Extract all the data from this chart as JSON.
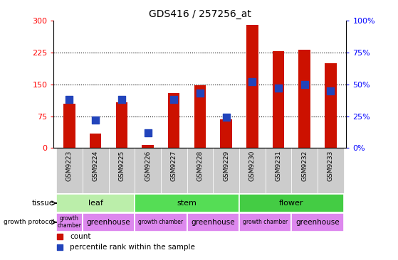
{
  "title": "GDS416 / 257256_at",
  "samples": [
    "GSM9223",
    "GSM9224",
    "GSM9225",
    "GSM9226",
    "GSM9227",
    "GSM9228",
    "GSM9229",
    "GSM9230",
    "GSM9231",
    "GSM9232",
    "GSM9233"
  ],
  "counts": [
    105,
    35,
    108,
    8,
    130,
    148,
    68,
    290,
    228,
    232,
    200
  ],
  "percentiles": [
    38,
    22,
    38,
    12,
    38,
    43,
    24,
    52,
    47,
    50,
    45
  ],
  "ylim_left": [
    0,
    300
  ],
  "ylim_right": [
    0,
    100
  ],
  "yticks_left": [
    0,
    75,
    150,
    225,
    300
  ],
  "yticks_right": [
    0,
    25,
    50,
    75,
    100
  ],
  "bar_color": "#cc1100",
  "dot_color": "#2244bb",
  "tissue_groups": [
    {
      "label": "leaf",
      "start": 0,
      "end": 3,
      "color": "#bbeeaa"
    },
    {
      "label": "stem",
      "start": 3,
      "end": 7,
      "color": "#55dd55"
    },
    {
      "label": "flower",
      "start": 7,
      "end": 11,
      "color": "#44cc44"
    }
  ],
  "protocol_groups": [
    {
      "label": "growth\nchamber",
      "start": 0,
      "end": 1,
      "small": true
    },
    {
      "label": "greenhouse",
      "start": 1,
      "end": 3,
      "small": false
    },
    {
      "label": "growth chamber",
      "start": 3,
      "end": 5,
      "small": true
    },
    {
      "label": "greenhouse",
      "start": 5,
      "end": 7,
      "small": false
    },
    {
      "label": "growth chamber",
      "start": 7,
      "end": 9,
      "small": true
    },
    {
      "label": "greenhouse",
      "start": 9,
      "end": 11,
      "small": false
    }
  ],
  "protocol_color": "#dd88ee",
  "tissue_label": "tissue",
  "protocol_label": "growth protocol",
  "legend_count": "count",
  "legend_percentile": "percentile rank within the sample",
  "plot_bg_color": "#ffffff",
  "xtick_bg_color": "#cccccc",
  "dot_size": 55,
  "bar_width": 0.45
}
